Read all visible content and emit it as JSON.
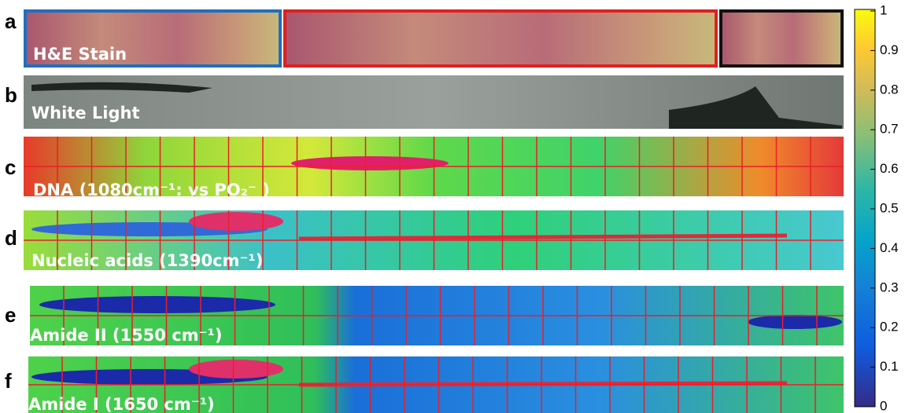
{
  "panels": [
    {
      "letter": "a",
      "caption": "H&E Stain"
    },
    {
      "letter": "b",
      "caption": "White Light"
    },
    {
      "letter": "c",
      "caption": "DNA (1080cm⁻¹: vs PO₂⁻ )"
    },
    {
      "letter": "d",
      "caption": "Nucleic acids (1390cm⁻¹)"
    },
    {
      "letter": "e",
      "caption": "Amide II (1550 cm⁻¹)"
    },
    {
      "letter": "f",
      "caption": "Amide I (1650 cm⁻¹)"
    }
  ],
  "colorbar": {
    "lim": [
      0,
      1
    ],
    "ticks": [
      0,
      0.1,
      0.2,
      0.3,
      0.4,
      0.5,
      0.6,
      0.7,
      0.8,
      0.9,
      1
    ]
  }
}
